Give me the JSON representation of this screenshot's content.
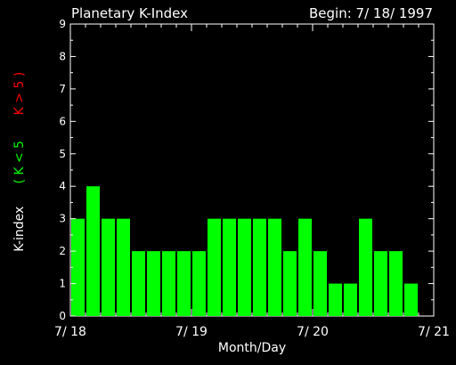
{
  "colors": {
    "background": "#000000",
    "foreground": "#ffffff",
    "bar": "#00ff00",
    "quiet": "#00ff00",
    "storm": "#ff0000"
  },
  "chart_data": {
    "type": "bar",
    "title": "Planetary K-Index",
    "subtitle": "Begin: 7/ 18/ 1997",
    "xlabel": "Month/Day",
    "ylabel": {
      "text": "K-index",
      "quiet": "( K < 5",
      "storm": "K > 5 )"
    },
    "ylim": [
      0,
      9
    ],
    "yticks": [
      0,
      1,
      2,
      3,
      4,
      5,
      6,
      7,
      8,
      9
    ],
    "xlim": [
      0,
      24
    ],
    "xtick_labels": [
      "7/ 18",
      "7/ 19",
      "7/ 20",
      "7/ 21"
    ],
    "values": [
      3,
      4,
      3,
      3,
      2,
      2,
      2,
      2,
      2,
      3,
      3,
      3,
      3,
      3,
      2,
      3,
      2,
      1,
      1,
      3,
      2,
      2,
      1
    ]
  }
}
